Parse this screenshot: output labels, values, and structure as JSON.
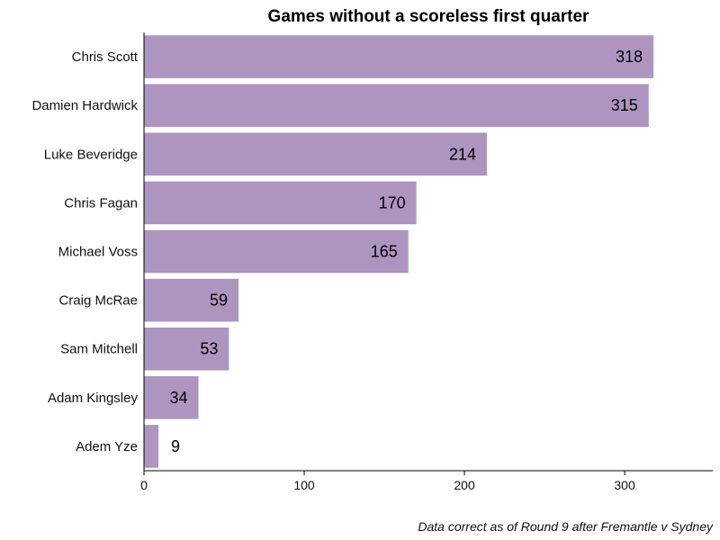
{
  "chart_data": {
    "type": "bar",
    "orientation": "horizontal",
    "title": "Games without a scoreless first quarter",
    "caption": "Data correct as of Round 9 after Fremantle v Sydney",
    "categories": [
      "Chris Scott",
      "Damien Hardwick",
      "Luke Beveridge",
      "Chris Fagan",
      "Michael Voss",
      "Craig McRae",
      "Sam Mitchell",
      "Adam Kingsley",
      "Adem Yze"
    ],
    "values": [
      318,
      315,
      214,
      170,
      165,
      59,
      53,
      34,
      9
    ],
    "xlabel": "",
    "ylabel": "",
    "xlim": [
      0,
      355
    ],
    "xticks": [
      0,
      100,
      200,
      300
    ],
    "bar_color": "#ad95c0",
    "grid": false,
    "legend": "none"
  }
}
